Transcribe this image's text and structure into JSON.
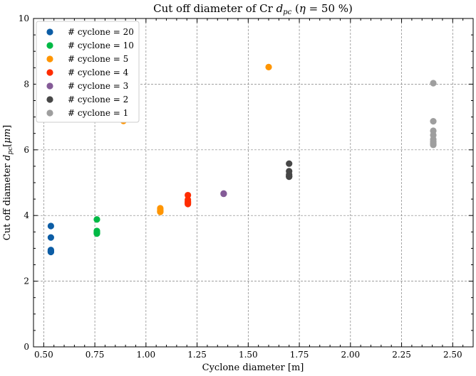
{
  "chart_data": {
    "type": "scatter",
    "title": "Cut off diameter of Cr d_pc (η = 50 %)",
    "xlabel": "Cyclone diameter [m]",
    "ylabel": "Cut off diameter d_pc [μm]",
    "xlim": [
      0.45,
      2.6
    ],
    "ylim": [
      0,
      10
    ],
    "xticks": [
      "0.50",
      "0.75",
      "1.00",
      "1.25",
      "1.50",
      "1.75",
      "2.00",
      "2.25",
      "2.50"
    ],
    "yticks": [
      "0",
      "2",
      "4",
      "6",
      "8",
      "10"
    ],
    "grid": true,
    "legend_position": "top-left",
    "series": [
      {
        "name": "# cyclone = 20",
        "color": "#0C5DA5",
        "x": [
          0.535,
          0.535,
          0.535,
          0.535,
          0.535,
          0.535
        ],
        "y": [
          3.68,
          3.33,
          2.95,
          2.92,
          2.9,
          2.89
        ]
      },
      {
        "name": "# cyclone = 10",
        "color": "#00B945",
        "x": [
          0.76,
          0.76,
          0.76,
          0.76,
          0.76
        ],
        "y": [
          3.88,
          3.53,
          3.5,
          3.47,
          3.45
        ]
      },
      {
        "name": "# cyclone = 5",
        "color": "#FF9500",
        "x": [
          1.6,
          0.89,
          1.07,
          1.07,
          1.07,
          1.07
        ],
        "y": [
          8.52,
          6.88,
          4.22,
          4.17,
          4.13,
          4.11
        ]
      },
      {
        "name": "# cyclone = 4",
        "color": "#FF2C00",
        "x": [
          1.205,
          1.205,
          1.205,
          1.205,
          1.205
        ],
        "y": [
          4.62,
          4.48,
          4.42,
          4.38,
          4.35
        ]
      },
      {
        "name": "# cyclone = 3",
        "color": "#845B97",
        "x": [
          1.38,
          1.38
        ],
        "y": [
          4.67,
          4.66
        ]
      },
      {
        "name": "# cyclone = 2",
        "color": "#474747",
        "x": [
          1.7,
          1.7,
          1.7,
          1.7,
          1.7
        ],
        "y": [
          5.58,
          5.35,
          5.25,
          5.2,
          5.18
        ]
      },
      {
        "name": "# cyclone = 1",
        "color": "#9E9E9E",
        "x": [
          2.405,
          2.405,
          2.405,
          2.405,
          2.405,
          2.405,
          2.405,
          2.405,
          2.405
        ],
        "y": [
          8.03,
          6.87,
          6.58,
          6.45,
          6.32,
          6.25,
          6.2,
          6.17,
          6.15
        ]
      }
    ]
  }
}
